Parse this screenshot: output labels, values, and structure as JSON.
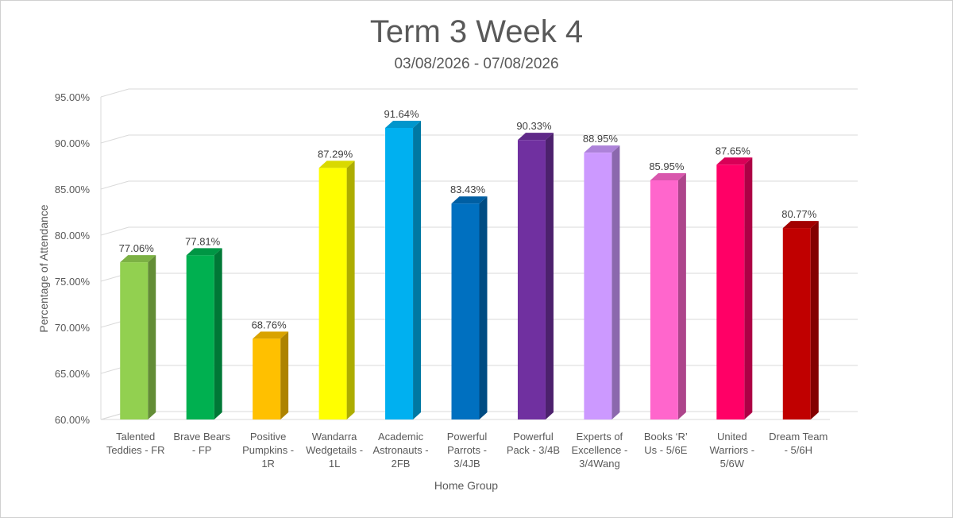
{
  "chart_data": {
    "type": "bar",
    "title": "Term 3 Week 4",
    "subtitle": "03/08/2026 - 07/08/2026",
    "xlabel": "Home Group",
    "ylabel": "Percentage of Attendance",
    "ylim": [
      60,
      95
    ],
    "yticks": [
      "60.00%",
      "65.00%",
      "70.00%",
      "75.00%",
      "80.00%",
      "85.00%",
      "90.00%",
      "95.00%"
    ],
    "grid": true,
    "categories": [
      [
        "Talented",
        "Teddies - FR"
      ],
      [
        "Brave Bears",
        "- FP"
      ],
      [
        "Positive",
        "Pumpkins -",
        "1R"
      ],
      [
        "Wandarra",
        "Wedgetails -",
        "1L"
      ],
      [
        "Academic",
        "Astronauts -",
        "2FB"
      ],
      [
        "Powerful",
        "Parrots -",
        "3/4JB"
      ],
      [
        "Powerful",
        "Pack - 3/4B"
      ],
      [
        "Experts of",
        "Excellence -",
        "3/4Wang"
      ],
      [
        "Books ‘R’",
        "Us - 5/6E"
      ],
      [
        "United",
        "Warriors -",
        "5/6W"
      ],
      [
        "Dream Team",
        "- 5/6H"
      ]
    ],
    "values": [
      77.06,
      77.81,
      68.76,
      87.29,
      91.64,
      83.43,
      90.33,
      88.95,
      85.95,
      87.65,
      80.77
    ],
    "data_labels": [
      "77.06%",
      "77.81%",
      "68.76%",
      "87.29%",
      "91.64%",
      "83.43%",
      "90.33%",
      "88.95%",
      "85.95%",
      "87.65%",
      "80.77%"
    ],
    "colors": [
      "#92d050",
      "#00b050",
      "#ffc000",
      "#ffff00",
      "#00b0f0",
      "#0070c0",
      "#7030a0",
      "#cc99ff",
      "#ff66cc",
      "#ff0066",
      "#c00000"
    ]
  }
}
